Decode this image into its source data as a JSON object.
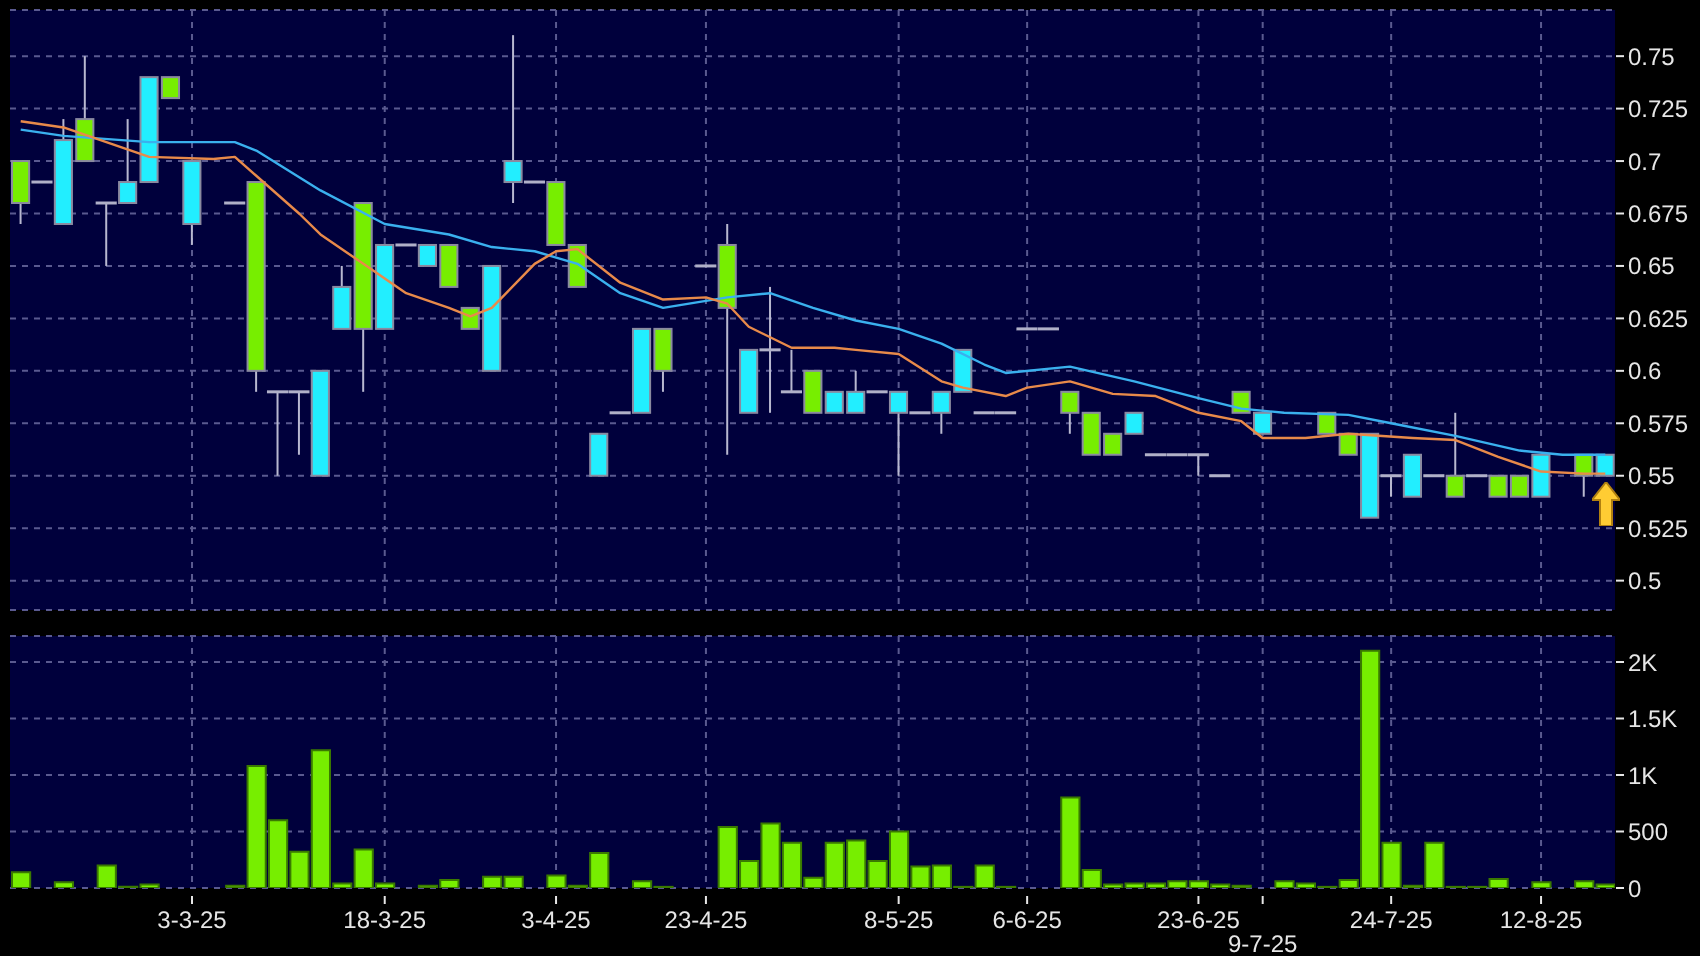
{
  "chart_data": [
    {
      "type": "candlestick",
      "categories": [
        null,
        null,
        null,
        null,
        null,
        null,
        null,
        null,
        null,
        null,
        null,
        null,
        null,
        null,
        null,
        null,
        null,
        null,
        null,
        null,
        null,
        null,
        null,
        null,
        null,
        null,
        null,
        null,
        null,
        null,
        null,
        null,
        null,
        null,
        null,
        null,
        null,
        null,
        null,
        null,
        null,
        null,
        null,
        null,
        null,
        null,
        null,
        null,
        null,
        null,
        null,
        null,
        null,
        null,
        null,
        null,
        null,
        null,
        null,
        null,
        null,
        null,
        null,
        null,
        null,
        null,
        null,
        null,
        null,
        null,
        null,
        null,
        null,
        null,
        null
      ],
      "ohlc": [
        [
          0.68,
          0.7,
          0.67,
          0.7
        ],
        [
          0.69,
          0.69,
          0.69,
          0.69
        ],
        [
          0.71,
          0.72,
          0.67,
          0.67
        ],
        [
          0.7,
          0.75,
          0.7,
          0.72
        ],
        [
          0.68,
          0.68,
          0.65,
          0.68
        ],
        [
          0.69,
          0.72,
          0.68,
          0.68
        ],
        [
          0.74,
          0.74,
          0.69,
          0.69
        ],
        [
          0.73,
          0.74,
          0.73,
          0.74
        ],
        [
          0.7,
          0.7,
          0.66,
          0.67
        ],
        null,
        [
          0.68,
          0.68,
          0.68,
          0.68
        ],
        [
          0.6,
          0.69,
          0.59,
          0.69
        ],
        [
          0.59,
          0.59,
          0.55,
          0.59
        ],
        [
          0.59,
          0.59,
          0.56,
          0.59
        ],
        [
          0.6,
          0.6,
          0.55,
          0.55
        ],
        [
          0.64,
          0.65,
          0.62,
          0.62
        ],
        [
          0.62,
          0.68,
          0.59,
          0.68
        ],
        [
          0.66,
          0.66,
          0.62,
          0.62
        ],
        [
          0.66,
          0.66,
          0.66,
          0.66
        ],
        [
          0.66,
          0.66,
          0.65,
          0.65
        ],
        [
          0.64,
          0.66,
          0.64,
          0.66
        ],
        [
          0.62,
          0.63,
          0.62,
          0.63
        ],
        [
          0.65,
          0.65,
          0.6,
          0.6
        ],
        [
          0.7,
          0.76,
          0.68,
          0.69
        ],
        [
          0.69,
          0.69,
          0.69,
          0.69
        ],
        [
          0.66,
          0.69,
          0.66,
          0.69
        ],
        [
          0.64,
          0.66,
          0.64,
          0.66
        ],
        [
          0.57,
          0.57,
          0.55,
          0.55
        ],
        [
          0.58,
          0.58,
          0.58,
          0.58
        ],
        [
          0.62,
          0.62,
          0.58,
          0.58
        ],
        [
          0.6,
          0.62,
          0.59,
          0.62
        ],
        null,
        [
          0.65,
          0.65,
          0.65,
          0.65
        ],
        [
          0.63,
          0.67,
          0.56,
          0.66
        ],
        [
          0.61,
          0.61,
          0.58,
          0.58
        ],
        [
          0.61,
          0.64,
          0.58,
          0.61
        ],
        [
          0.59,
          0.61,
          0.59,
          0.59
        ],
        [
          0.58,
          0.6,
          0.58,
          0.6
        ],
        [
          0.59,
          0.59,
          0.58,
          0.58
        ],
        [
          0.59,
          0.6,
          0.58,
          0.58
        ],
        [
          0.59,
          0.59,
          0.59,
          0.59
        ],
        [
          0.59,
          0.59,
          0.55,
          0.58
        ],
        [
          0.58,
          0.58,
          0.58,
          0.58
        ],
        [
          0.59,
          0.59,
          0.57,
          0.58
        ],
        [
          0.61,
          0.61,
          0.59,
          0.59
        ],
        [
          0.58,
          0.58,
          0.58,
          0.58
        ],
        [
          0.58,
          0.58,
          0.58,
          0.58
        ],
        [
          0.62,
          0.62,
          0.62,
          0.62
        ],
        [
          0.62,
          0.62,
          0.62,
          0.62
        ],
        [
          0.58,
          0.59,
          0.57,
          0.59
        ],
        [
          0.56,
          0.58,
          0.56,
          0.58
        ],
        [
          0.56,
          0.57,
          0.56,
          0.57
        ],
        [
          0.58,
          0.58,
          0.57,
          0.57
        ],
        [
          0.56,
          0.56,
          0.56,
          0.56
        ],
        [
          0.56,
          0.56,
          0.56,
          0.56
        ],
        [
          0.56,
          0.56,
          0.55,
          0.56
        ],
        [
          0.55,
          0.55,
          0.55,
          0.55
        ],
        [
          0.58,
          0.59,
          0.58,
          0.59
        ],
        [
          0.58,
          0.58,
          0.57,
          0.57
        ],
        null,
        null,
        [
          0.57,
          0.58,
          0.57,
          0.58
        ],
        [
          0.56,
          0.57,
          0.56,
          0.57
        ],
        [
          0.57,
          0.57,
          0.53,
          0.53
        ],
        [
          0.55,
          0.55,
          0.54,
          0.55
        ],
        [
          0.56,
          0.56,
          0.54,
          0.54
        ],
        [
          0.55,
          0.55,
          0.55,
          0.55
        ],
        [
          0.54,
          0.58,
          0.54,
          0.55
        ],
        [
          0.55,
          0.55,
          0.55,
          0.55
        ],
        [
          0.54,
          0.55,
          0.54,
          0.55
        ],
        [
          0.54,
          0.55,
          0.54,
          0.55
        ],
        [
          0.56,
          0.56,
          0.54,
          0.54
        ],
        null,
        [
          0.55,
          0.56,
          0.54,
          0.56
        ],
        [
          0.56,
          0.56,
          0.55,
          0.55
        ]
      ],
      "colors": [
        "#77ee00",
        "#b0b0c8",
        "#22eeff",
        "#77ee00",
        "#b0b0c8",
        "#22eeff",
        "#22eeff",
        "#77ee00",
        "#22eeff",
        null,
        "#b0b0c8",
        "#77ee00",
        "#b0b0c8",
        "#b0b0c8",
        "#22eeff",
        "#22eeff",
        "#77ee00",
        "#22eeff",
        "#b0b0c8",
        "#22eeff",
        "#77ee00",
        "#77ee00",
        "#22eeff",
        "#22eeff",
        "#b0b0c8",
        "#77ee00",
        "#77ee00",
        "#22eeff",
        "#b0b0c8",
        "#22eeff",
        "#77ee00",
        null,
        "#b0b0c8",
        "#77ee00",
        "#22eeff",
        "#b0b0c8",
        "#b0b0c8",
        "#77ee00",
        "#22eeff",
        "#22eeff",
        "#b0b0c8",
        "#22eeff",
        "#b0b0c8",
        "#22eeff",
        "#22eeff",
        "#b0b0c8",
        "#b0b0c8",
        "#b0b0c8",
        "#b0b0c8",
        "#77ee00",
        "#77ee00",
        "#77ee00",
        "#22eeff",
        "#b0b0c8",
        "#b0b0c8",
        "#b0b0c8",
        "#b0b0c8",
        "#77ee00",
        "#22eeff",
        null,
        null,
        "#77ee00",
        "#77ee00",
        "#22eeff",
        "#b0b0c8",
        "#22eeff",
        "#b0b0c8",
        "#77ee00",
        "#b0b0c8",
        "#77ee00",
        "#77ee00",
        "#22eeff",
        null,
        "#77ee00",
        "#22eeff"
      ],
      "series": [
        {
          "type": "line",
          "color": "#3ab0ee",
          "values": [
            0.715,
            null,
            0.712,
            null,
            null,
            null,
            0.709,
            null,
            null,
            null,
            0.709,
            0.705,
            null,
            null,
            0.686,
            null,
            null,
            0.67,
            null,
            null,
            0.665,
            null,
            0.659,
            null,
            0.657,
            null,
            0.651,
            null,
            0.637,
            null,
            0.63,
            null,
            null,
            0.635,
            null,
            0.637,
            null,
            0.63,
            null,
            0.624,
            null,
            0.62,
            null,
            0.613,
            null,
            0.603,
            0.599,
            null,
            null,
            0.602,
            null,
            null,
            0.595,
            null,
            null,
            0.587,
            null,
            0.582,
            null,
            0.58,
            null,
            null,
            0.579,
            null,
            0.575,
            null,
            null,
            0.569,
            null,
            null,
            0.562,
            null,
            0.56,
            null,
            0.56
          ]
        },
        {
          "type": "line",
          "color": "#e88a4a",
          "values": [
            0.719,
            null,
            0.716,
            null,
            0.709,
            null,
            0.702,
            null,
            null,
            0.701,
            0.702,
            0.693,
            null,
            0.675,
            0.665,
            null,
            0.651,
            null,
            0.637,
            null,
            0.63,
            0.626,
            0.63,
            null,
            0.651,
            0.657,
            0.658,
            null,
            0.642,
            null,
            0.634,
            null,
            0.635,
            0.632,
            0.621,
            null,
            0.611,
            null,
            0.611,
            0.61,
            null,
            0.608,
            null,
            0.595,
            0.592,
            null,
            0.588,
            0.592,
            null,
            0.595,
            null,
            0.589,
            null,
            0.588,
            null,
            0.58,
            null,
            0.576,
            0.568,
            null,
            0.568,
            null,
            0.57,
            null,
            null,
            0.568,
            null,
            0.567,
            null,
            0.559,
            null,
            0.552,
            null,
            0.551,
            0.551
          ]
        }
      ],
      "ylim": [
        0.486,
        0.772
      ],
      "yticks": [
        0.5,
        0.525,
        0.55,
        0.575,
        0.6,
        0.625,
        0.65,
        0.675,
        0.7,
        0.725,
        0.75
      ],
      "grid": true,
      "tick_labels": "y"
    },
    {
      "type": "bar",
      "categories": [
        null,
        null,
        null,
        null,
        null,
        null,
        null,
        null,
        "3-3-25",
        null,
        null,
        null,
        null,
        null,
        null,
        null,
        null,
        "18-3-25",
        null,
        null,
        null,
        null,
        null,
        null,
        null,
        "3-4-25",
        null,
        null,
        null,
        null,
        null,
        null,
        "23-4-25",
        null,
        null,
        null,
        null,
        null,
        null,
        null,
        null,
        "8-5-25",
        null,
        null,
        null,
        null,
        null,
        "6-6-25",
        null,
        null,
        null,
        null,
        null,
        null,
        null,
        "23-6-25",
        null,
        null,
        "9-7-25",
        null,
        null,
        null,
        null,
        null,
        "24-7-25",
        null,
        null,
        null,
        null,
        null,
        null,
        "12-8-25",
        null,
        null,
        null
      ],
      "values": [
        140,
        0,
        50,
        0,
        200,
        10,
        30,
        0,
        0,
        0,
        20,
        1080,
        600,
        320,
        1220,
        40,
        340,
        40,
        0,
        20,
        70,
        0,
        100,
        100,
        0,
        110,
        20,
        310,
        0,
        60,
        10,
        0,
        0,
        540,
        240,
        570,
        400,
        90,
        400,
        420,
        240,
        500,
        190,
        200,
        10,
        200,
        10,
        0,
        0,
        800,
        160,
        30,
        40,
        40,
        60,
        60,
        30,
        20,
        0,
        60,
        40,
        10,
        70,
        2100,
        400,
        20,
        400,
        10,
        10,
        80,
        0,
        50,
        0,
        60,
        30
      ],
      "color": "#77ee00",
      "ylim": [
        0,
        2230
      ],
      "yticks": [
        0,
        500,
        {
          "value": 1000,
          "label": "1K"
        },
        {
          "value": 1500,
          "label": "1.5K"
        },
        {
          "value": 2000,
          "label": "2K"
        }
      ],
      "grid": true
    }
  ]
}
